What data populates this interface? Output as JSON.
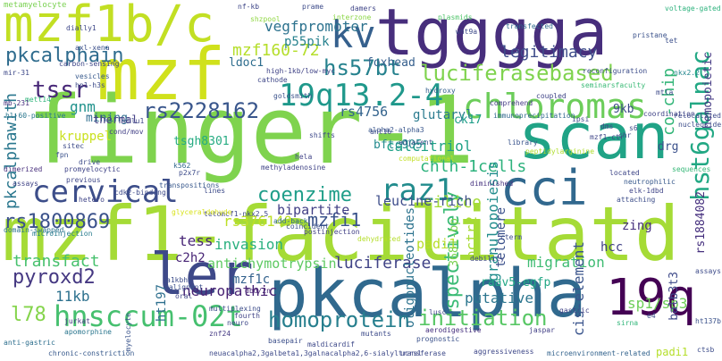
{
  "words": [
    {
      "text": "finger-1",
      "color": "#7fd34e"
    },
    {
      "text": "mzf1-facilitatd",
      "color": "#a5db36"
    },
    {
      "text": "pkcalpha",
      "color": "#30698e"
    },
    {
      "text": "tgggga",
      "color": "#472e7c"
    },
    {
      "text": "mzf",
      "color": "#d0e11c"
    },
    {
      "text": "mzf1b/c",
      "color": "#c2df23"
    },
    {
      "text": "scan",
      "color": "#20a386"
    },
    {
      "text": "ler",
      "color": "#3e4989"
    },
    {
      "text": "19q",
      "color": "#440154"
    },
    {
      "text": "cci",
      "color": "#31688e"
    },
    {
      "text": "kv",
      "color": "#35608d"
    },
    {
      "text": "hnsccum-02t",
      "color": "#46c06f"
    },
    {
      "text": "19q13.2-4",
      "color": "#1f988b"
    },
    {
      "text": "chloromas",
      "color": "#6ccd5a"
    },
    {
      "text": "cervical",
      "color": "#3d4e8a"
    },
    {
      "text": "raz1",
      "color": "#228c8d"
    },
    {
      "text": "homoprotein",
      "color": "#277f8e"
    },
    {
      "text": "initiation",
      "color": "#58c765"
    },
    {
      "text": "hst6galnac",
      "color": "#22a884"
    },
    {
      "text": "pkcalphain",
      "color": "#2f6c8e"
    },
    {
      "text": "luciferasebased",
      "color": "#7fd34e"
    },
    {
      "text": "rs2228162",
      "color": "#39568c"
    },
    {
      "text": "rs1800869",
      "color": "#3b528b"
    },
    {
      "text": "pyroxd2",
      "color": "#453882"
    },
    {
      "text": "coenzime",
      "color": "#1f9e89"
    },
    {
      "text": "spectively",
      "color": "#3bbb75"
    },
    {
      "text": "hs57bt",
      "color": "#26828e"
    },
    {
      "text": "tssr",
      "color": "#482878"
    },
    {
      "text": "mzf160-72",
      "color": "#b5de2b"
    },
    {
      "text": "vegfpromoter",
      "color": "#2c728e"
    },
    {
      "text": "legitimacy",
      "color": "#3e4c8a"
    },
    {
      "text": "chlh-1cells",
      "color": "#2db27d"
    },
    {
      "text": "mzfi1",
      "color": "#3a538b"
    },
    {
      "text": "rs376140",
      "color": "#bddf26"
    },
    {
      "text": "luciferase",
      "color": "#414487"
    },
    {
      "text": "neuropathic",
      "color": "#482374"
    },
    {
      "text": "invasion",
      "color": "#2ab07f"
    },
    {
      "text": "transfact",
      "color": "#48c16e"
    },
    {
      "text": "antichymotrypsin",
      "color": "#5ec962"
    },
    {
      "text": "migration",
      "color": "#3fbc73"
    },
    {
      "text": "putative",
      "color": "#2b758e"
    },
    {
      "text": "cis-element",
      "color": "#3a548c"
    },
    {
      "text": "sp1/sp3",
      "color": "#6ece58"
    },
    {
      "text": "pctr2",
      "color": "#a8db34"
    },
    {
      "text": "co-chip",
      "color": "#34b679"
    },
    {
      "text": "granulopoiesis",
      "color": "#228d8d"
    },
    {
      "text": "calcitriol",
      "color": "#1fa287"
    },
    {
      "text": "silico",
      "color": "#a2da37"
    },
    {
      "text": "bipartite",
      "color": "#424086"
    },
    {
      "text": "leucine-rich",
      "color": "#3d4d8a"
    },
    {
      "text": "gnm",
      "color": "#20928c"
    },
    {
      "text": "mining",
      "color": "#2e6e8e"
    },
    {
      "text": "pkcalphawith",
      "color": "#2a778e"
    },
    {
      "text": "tess",
      "color": "#482677"
    },
    {
      "text": "11kb",
      "color": "#2d718e"
    },
    {
      "text": "l78",
      "color": "#84d44b"
    },
    {
      "text": "ht197",
      "color": "#2e6f8e"
    },
    {
      "text": "c2h2",
      "color": "#482576"
    },
    {
      "text": "mzf1c",
      "color": "#33628d"
    },
    {
      "text": "hcc",
      "color": "#414287"
    },
    {
      "text": "zing",
      "color": "#46307e"
    },
    {
      "text": "padi1",
      "color": "#b8de29"
    },
    {
      "text": "raav5-egfp",
      "color": "#22a785"
    },
    {
      "text": "telomere",
      "color": "#3b518b"
    },
    {
      "text": "oligonucleotides",
      "color": "#2c738e"
    },
    {
      "text": "3681-bp",
      "color": "#7ad151"
    },
    {
      "text": "rs4756",
      "color": "#33638d"
    },
    {
      "text": "glutaryl",
      "color": "#297a8e"
    },
    {
      "text": "tsgh8301",
      "color": "#25ab82"
    },
    {
      "text": "bftc905",
      "color": "#238a8d"
    },
    {
      "text": "ldoc1",
      "color": "#2e6d8e"
    },
    {
      "text": "p55pik",
      "color": "#26818e"
    },
    {
      "text": "foxhead",
      "color": "#355f8d"
    },
    {
      "text": "9kb",
      "color": "#3e4989"
    },
    {
      "text": "ck17",
      "color": "#1f9e89"
    },
    {
      "text": "drg",
      "color": "#3b518b"
    },
    {
      "text": "hemopoietic",
      "color": "#443983"
    },
    {
      "text": "rs1884082",
      "color": "#46307e"
    },
    {
      "text": "balb3t3",
      "color": "#3e4a89"
    },
    {
      "text": "padi1",
      "color": "#b5de2b"
    },
    {
      "text": "kruppel",
      "color": "#cae11f"
    },
    {
      "text": "thermal",
      "color": "#433e85"
    },
    {
      "text": "metamyelocyte",
      "color": "#7ad151"
    },
    {
      "text": "prame",
      "color": "#3e4c8a"
    },
    {
      "text": "voltage-gated",
      "color": "#2db27d"
    },
    {
      "text": "damers",
      "color": "#404688"
    },
    {
      "text": "interzone",
      "color": "#8bd646"
    },
    {
      "text": "plasmids",
      "color": "#50c46a"
    },
    {
      "text": "pristane",
      "color": "#3b528b"
    },
    {
      "text": "transfected",
      "color": "#2f6b8e"
    },
    {
      "text": "shzpool",
      "color": "#90d743"
    },
    {
      "text": "dially1",
      "color": "#3f4889"
    },
    {
      "text": "wnt9a",
      "color": "#3e4a89"
    },
    {
      "text": "reconfiguration",
      "color": "#3d4e8a"
    },
    {
      "text": "nkx2.2",
      "color": "#24868e"
    },
    {
      "text": "mett14",
      "color": "#31b57b"
    },
    {
      "text": "seminarsfaculty",
      "color": "#3aba76"
    },
    {
      "text": "coupled",
      "color": "#404588"
    },
    {
      "text": "comprehend",
      "color": "#443b84"
    },
    {
      "text": "hydroxy",
      "color": "#35608d"
    },
    {
      "text": "immunoprecipitation",
      "color": "#31688e"
    },
    {
      "text": "peptidylarginine",
      "color": "#b0dd2f"
    },
    {
      "text": "library",
      "color": "#3a548c"
    },
    {
      "text": "adjacent",
      "color": "#3b528b"
    },
    {
      "text": "computational",
      "color": "#c2df23"
    },
    {
      "text": "methyladenosine",
      "color": "#414487"
    },
    {
      "text": "alpha2-alpha3",
      "color": "#39568c"
    },
    {
      "text": "promyelocytic",
      "color": "#404588"
    },
    {
      "text": "previous",
      "color": "#3f4788"
    },
    {
      "text": "drive",
      "color": "#3e4c8a"
    },
    {
      "text": "assays",
      "color": "#414487"
    },
    {
      "text": "transpositions",
      "color": "#38588c"
    },
    {
      "text": "domain-swapped",
      "color": "#2c728e"
    },
    {
      "text": "microinjection",
      "color": "#287c8e"
    },
    {
      "text": "add-back",
      "color": "#30698e"
    },
    {
      "text": "coincident",
      "color": "#3b528b"
    },
    {
      "text": "postinjection",
      "color": "#424186"
    },
    {
      "text": "lines",
      "color": "#3e4c8a"
    },
    {
      "text": "tetomcf1-nkx2.5",
      "color": "#3f4889"
    },
    {
      "text": "neutrophilic",
      "color": "#38598c"
    },
    {
      "text": "elk-1dbd",
      "color": "#404588"
    },
    {
      "text": "sequences",
      "color": "#37b878"
    },
    {
      "text": "attaching",
      "color": "#3d4e8a"
    },
    {
      "text": "located",
      "color": "#3f4788"
    },
    {
      "text": "diminished",
      "color": "#46337f"
    },
    {
      "text": "k562",
      "color": "#31688e"
    },
    {
      "text": "p2x7r",
      "color": "#3e4c8a"
    },
    {
      "text": "fpn",
      "color": "#3b528b"
    },
    {
      "text": "glyceraldehyde",
      "color": "#d8e219"
    },
    {
      "text": "a1kbhs",
      "color": "#3d4e8a"
    },
    {
      "text": "malignant",
      "color": "#3c508b"
    },
    {
      "text": "dbd/2n",
      "color": "#482475"
    },
    {
      "text": "oral",
      "color": "#404588"
    },
    {
      "text": "apomorphine",
      "color": "#2a768e"
    },
    {
      "text": "znf24",
      "color": "#443983"
    },
    {
      "text": "basepair",
      "color": "#3c4f8a"
    },
    {
      "text": "neuacalpha2,3galbeta1,3galnacalpha2,6-sialyltransferase",
      "color": "#3e4a89"
    },
    {
      "text": "aggressiveness",
      "color": "#3f4889"
    },
    {
      "text": "microenvironment-related",
      "color": "#33638d"
    },
    {
      "text": "jaspar",
      "color": "#424086"
    },
    {
      "text": "aerodigestive",
      "color": "#46307e"
    },
    {
      "text": "prognostic",
      "color": "#3b528b"
    },
    {
      "text": "lusc",
      "color": "#404688"
    },
    {
      "text": "jurkat",
      "color": "#453882"
    },
    {
      "text": "myelocyte",
      "color": "#3a548c"
    },
    {
      "text": "anti-gastric",
      "color": "#2e6f8e"
    },
    {
      "text": "chronic-constriction",
      "color": "#37598c"
    },
    {
      "text": "maldicardif",
      "color": "#3e4989"
    },
    {
      "text": "gastric",
      "color": "#414487"
    },
    {
      "text": "e4",
      "color": "#3d4e8a"
    },
    {
      "text": "sirna",
      "color": "#32b67a"
    },
    {
      "text": "ht137b",
      "color": "#3b528b"
    },
    {
      "text": "assays",
      "color": "#3e4c8a"
    },
    {
      "text": "ctsb",
      "color": "#3d4d8a"
    },
    {
      "text": "mb-231",
      "color": "#472f7d"
    },
    {
      "text": "hl-60-positive",
      "color": "#2a778e"
    },
    {
      "text": "carbon-sensing",
      "color": "#3f4788"
    },
    {
      "text": "mir-31",
      "color": "#3e4989"
    },
    {
      "text": "axl-xena",
      "color": "#3c508b"
    },
    {
      "text": "vesicles",
      "color": "#37598c"
    },
    {
      "text": "hp1-h3s",
      "color": "#3e4c8a"
    },
    {
      "text": "high-1kb/low-myc",
      "color": "#414487"
    },
    {
      "text": "cathode",
      "color": "#3f4788"
    },
    {
      "text": "goldsmith",
      "color": "#3b528b"
    },
    {
      "text": "hela",
      "color": "#414487"
    },
    {
      "text": "shifts",
      "color": "#3e4989"
    },
    {
      "text": "ant16",
      "color": "#3d4e8a"
    },
    {
      "text": "hlu1",
      "color": "#3f4889"
    },
    {
      "text": "cond/mov",
      "color": "#424086"
    },
    {
      "text": "sitec",
      "color": "#3e4c8a"
    },
    {
      "text": "dimerized",
      "color": "#472e7c"
    },
    {
      "text": "nf-kb",
      "color": "#3f4788"
    },
    {
      "text": "tet",
      "color": "#3c508b"
    },
    {
      "text": "hetero",
      "color": "#404688"
    },
    {
      "text": "cdk2-binding",
      "color": "#3e4a89"
    },
    {
      "text": "dehydrated",
      "color": "#b5de2b"
    },
    {
      "text": "cterm",
      "color": "#3d4e8a"
    },
    {
      "text": "debility",
      "color": "#3f4788"
    },
    {
      "text": "neuro",
      "color": "#3e4989"
    },
    {
      "text": "fourth",
      "color": "#414487"
    },
    {
      "text": "multiplexing",
      "color": "#3d4d8a"
    },
    {
      "text": "mutants",
      "color": "#3e4c8a"
    },
    {
      "text": "ucrsl",
      "color": "#3f4889"
    },
    {
      "text": "mtla",
      "color": "#3e4a89"
    },
    {
      "text": "coordination",
      "color": "#414487"
    },
    {
      "text": "relocalized",
      "color": "#3e4989"
    },
    {
      "text": "nucleoside",
      "color": "#3d4e8a"
    },
    {
      "text": "s6",
      "color": "#3e4c8a"
    },
    {
      "text": "mzf1-ctr",
      "color": "#404688"
    },
    {
      "text": "dms",
      "color": "#3f4788"
    },
    {
      "text": "chr",
      "color": "#3e4989"
    },
    {
      "text": "ipsi",
      "color": "#3e4c8a"
    }
  ]
}
